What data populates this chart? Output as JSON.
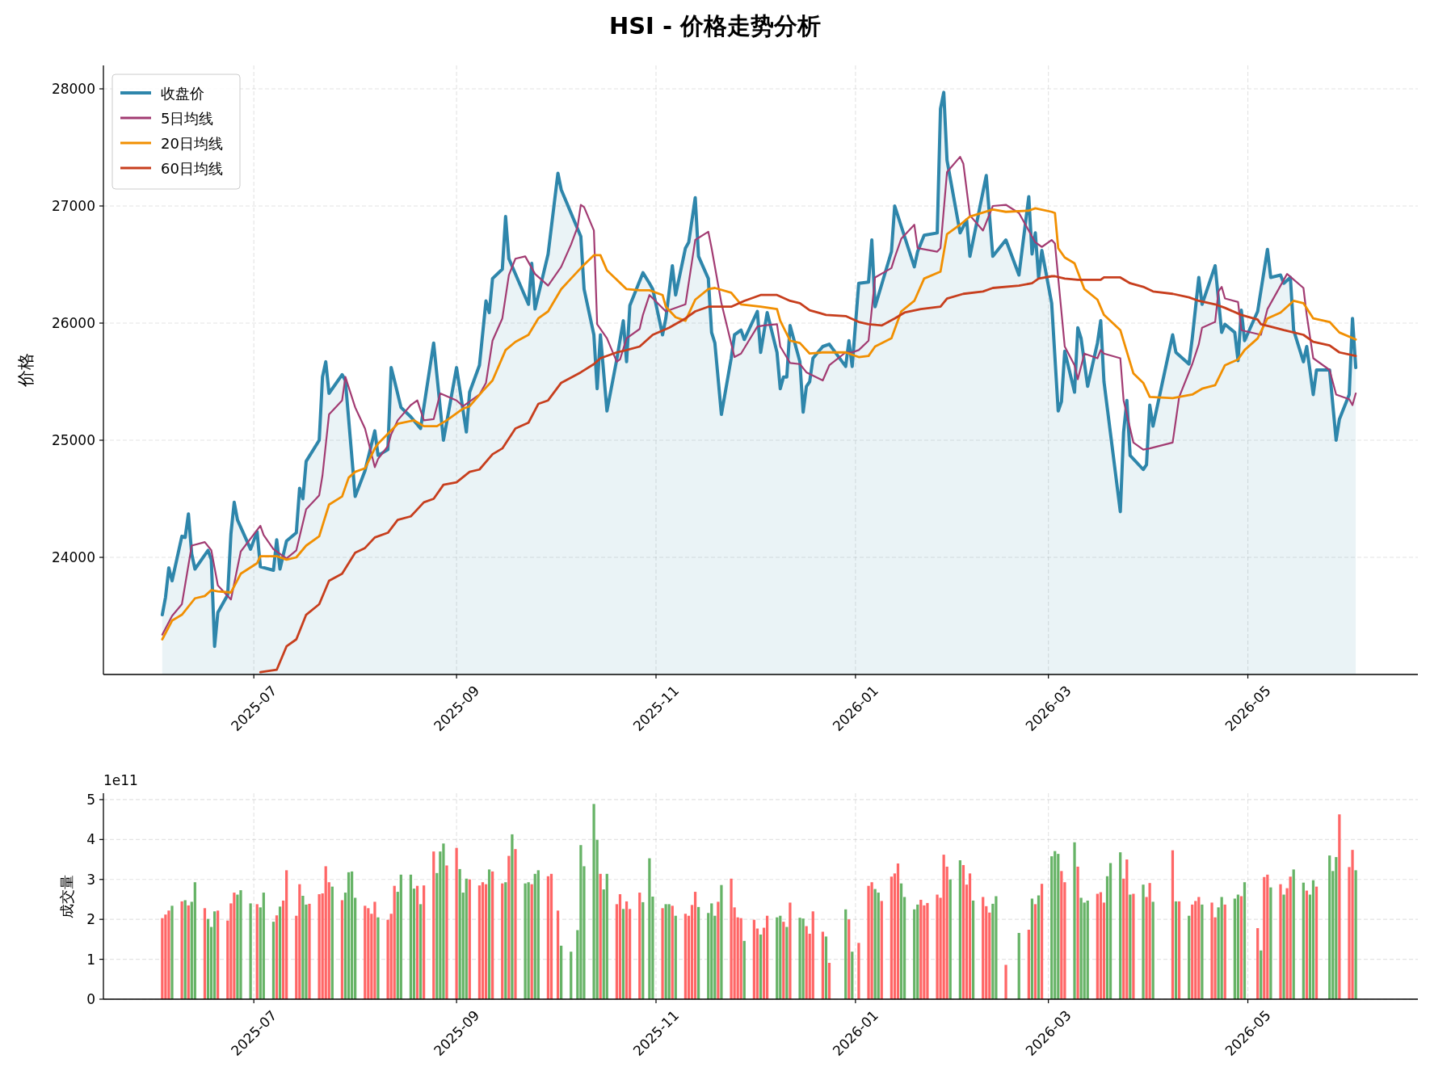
{
  "chart_data": [
    {
      "type": "line",
      "title": "HSI - 价格走势分析",
      "ylabel": "价格",
      "xlim": [
        "2025-05-16",
        "2026-06-22"
      ],
      "xticks": [
        "2025-07",
        "2025-09",
        "2025-11",
        "2026-01",
        "2026-03",
        "2026-05"
      ],
      "ylim": [
        23000,
        28200
      ],
      "yticks": [
        24000,
        25000,
        26000,
        27000,
        28000
      ],
      "grid": true,
      "legend": "top left",
      "series": [
        {
          "name": "收盘价",
          "type": "area",
          "color": "#2e86ab",
          "x": [
            "2025-06-03",
            "2025-06-04",
            "2025-06-05",
            "2025-06-06",
            "2025-06-09",
            "2025-06-10",
            "2025-06-11",
            "2025-06-12",
            "2025-06-13",
            "2025-06-17",
            "2025-06-18",
            "2025-06-19",
            "2025-06-20",
            "2025-06-23",
            "2025-06-24",
            "2025-06-25",
            "2025-06-26",
            "2025-06-30",
            "2025-07-02",
            "2025-07-03",
            "2025-07-07",
            "2025-07-08",
            "2025-07-09",
            "2025-07-11",
            "2025-07-14",
            "2025-07-15",
            "2025-07-16",
            "2025-07-17",
            "2025-07-21",
            "2025-07-22",
            "2025-07-23",
            "2025-07-24",
            "2025-07-28",
            "2025-07-29",
            "2025-08-01",
            "2025-08-04",
            "2025-08-07",
            "2025-08-08",
            "2025-08-11",
            "2025-08-12",
            "2025-08-13",
            "2025-08-15",
            "2025-08-18",
            "2025-08-21",
            "2025-08-25",
            "2025-08-28",
            "2025-09-01",
            "2025-09-04",
            "2025-09-05",
            "2025-09-08",
            "2025-09-10",
            "2025-09-11",
            "2025-09-12",
            "2025-09-15",
            "2025-09-16",
            "2025-09-17",
            "2025-09-23",
            "2025-09-24",
            "2025-09-25",
            "2025-09-29",
            "2025-10-02",
            "2025-10-03",
            "2025-10-09",
            "2025-10-10",
            "2025-10-13",
            "2025-10-14",
            "2025-10-15",
            "2025-10-17",
            "2025-10-20",
            "2025-10-22",
            "2025-10-23",
            "2025-10-24",
            "2025-10-28",
            "2025-10-30",
            "2025-10-31",
            "2025-11-03",
            "2025-11-04",
            "2025-11-06",
            "2025-11-07",
            "2025-11-10",
            "2025-11-11",
            "2025-11-13",
            "2025-11-14",
            "2025-11-17",
            "2025-11-18",
            "2025-11-19",
            "2025-11-21",
            "2025-11-24",
            "2025-11-25",
            "2025-11-27",
            "2025-11-28",
            "2025-12-02",
            "2025-12-03",
            "2025-12-05",
            "2025-12-08",
            "2025-12-09",
            "2025-12-10",
            "2025-12-11",
            "2025-12-12",
            "2025-12-15",
            "2025-12-16",
            "2025-12-17",
            "2025-12-18",
            "2025-12-19",
            "2025-12-22",
            "2025-12-24",
            "2025-12-29",
            "2025-12-30",
            "2025-12-31",
            "2026-01-02",
            "2026-01-05",
            "2026-01-06",
            "2026-01-07",
            "2026-01-12",
            "2026-01-13",
            "2026-01-19",
            "2026-01-20",
            "2026-01-22",
            "2026-01-26",
            "2026-01-27",
            "2026-01-28",
            "2026-01-29",
            "2026-02-02",
            "2026-02-04",
            "2026-02-05",
            "2026-02-10",
            "2026-02-12",
            "2026-02-16",
            "2026-02-20",
            "2026-02-23",
            "2026-02-24",
            "2026-02-25",
            "2026-02-26",
            "2026-02-27",
            "2026-03-02",
            "2026-03-04",
            "2026-03-05",
            "2026-03-06",
            "2026-03-09",
            "2026-03-10",
            "2026-03-11",
            "2026-03-13",
            "2026-03-16",
            "2026-03-17",
            "2026-03-18",
            "2026-03-23",
            "2026-03-24",
            "2026-03-25",
            "2026-03-26",
            "2026-03-30",
            "2026-03-31",
            "2026-04-01",
            "2026-04-02",
            "2026-04-08",
            "2026-04-09",
            "2026-04-13",
            "2026-04-14",
            "2026-04-16",
            "2026-04-17",
            "2026-04-21",
            "2026-04-23",
            "2026-04-24",
            "2026-04-27",
            "2026-04-28",
            "2026-04-29",
            "2026-04-30",
            "2026-05-04",
            "2026-05-07",
            "2026-05-08",
            "2026-05-11",
            "2026-05-12",
            "2026-05-14",
            "2026-05-15",
            "2026-05-18",
            "2026-05-19",
            "2026-05-21",
            "2026-05-22",
            "2026-05-26",
            "2026-05-28",
            "2026-05-29",
            "2026-06-01",
            "2026-06-02",
            "2026-06-03"
          ],
          "values": [
            23510,
            23660,
            23910,
            23800,
            24180,
            24170,
            24370,
            24030,
            23900,
            24060,
            23980,
            23240,
            23530,
            23680,
            24200,
            24470,
            24320,
            24070,
            24220,
            23920,
            23890,
            24150,
            23900,
            24140,
            24210,
            24590,
            24500,
            24820,
            25000,
            25540,
            25670,
            25400,
            25560,
            25510,
            24520,
            24740,
            25080,
            24870,
            24920,
            25620,
            25510,
            25280,
            25200,
            25100,
            25830,
            25000,
            25620,
            25070,
            25410,
            25640,
            26190,
            26090,
            26380,
            26460,
            26910,
            26550,
            26160,
            26510,
            26120,
            26590,
            27280,
            27140,
            26740,
            26290,
            25900,
            25440,
            25900,
            25250,
            25690,
            26020,
            25670,
            26150,
            26430,
            26340,
            26290,
            25900,
            26040,
            26490,
            26240,
            26640,
            26690,
            27070,
            26570,
            26380,
            25920,
            25830,
            25220,
            25700,
            25900,
            25940,
            25860,
            26100,
            25750,
            26090,
            25750,
            25440,
            25540,
            25540,
            25980,
            25670,
            25240,
            25460,
            25500,
            25700,
            25800,
            25820,
            25630,
            25850,
            25630,
            26340,
            26350,
            26710,
            26140,
            26610,
            27000,
            26480,
            26610,
            26750,
            26770,
            27830,
            27970,
            27390,
            26770,
            26880,
            26570,
            27260,
            26570,
            26710,
            26410,
            27080,
            26590,
            26770,
            26390,
            26620,
            26170,
            25250,
            25330,
            25760,
            25410,
            25960,
            25870,
            25460,
            25830,
            26020,
            25500,
            24390,
            25070,
            25340,
            24870,
            24750,
            24790,
            25300,
            25120,
            25900,
            25750,
            25650,
            25870,
            26390,
            26160,
            26490,
            25920,
            25990,
            25920,
            25680,
            26110,
            25850,
            26100,
            26630,
            26390,
            26410,
            26340,
            26390,
            25940,
            25670,
            25800,
            25390,
            25600,
            25600,
            25000,
            25180,
            25390,
            26040,
            25620
          ]
        },
        {
          "name": "5日均线",
          "color": "#a23b72",
          "x": [
            "2025-06-03",
            "2025-06-06",
            "2025-06-09",
            "2025-06-12",
            "2025-06-16",
            "2025-06-18",
            "2025-06-20",
            "2025-06-24",
            "2025-06-27",
            "2025-07-03",
            "2025-07-04",
            "2025-07-07",
            "2025-07-11",
            "2025-07-14",
            "2025-07-17",
            "2025-07-21",
            "2025-07-22",
            "2025-07-24",
            "2025-07-28",
            "2025-07-29",
            "2025-08-01",
            "2025-08-04",
            "2025-08-07",
            "2025-08-08",
            "2025-08-11",
            "2025-08-12",
            "2025-08-14",
            "2025-08-18",
            "2025-08-20",
            "2025-08-22",
            "2025-08-25",
            "2025-08-27",
            "2025-09-01",
            "2025-09-03",
            "2025-09-05",
            "2025-09-08",
            "2025-09-10",
            "2025-09-12",
            "2025-09-15",
            "2025-09-17",
            "2025-09-19",
            "2025-09-22",
            "2025-09-25",
            "2025-09-29",
            "2025-10-03",
            "2025-10-06",
            "2025-10-08",
            "2025-10-09",
            "2025-10-10",
            "2025-10-13",
            "2025-10-14",
            "2025-10-17",
            "2025-10-20",
            "2025-10-21",
            "2025-10-23",
            "2025-10-27",
            "2025-10-28",
            "2025-10-30",
            "2025-11-04",
            "2025-11-10",
            "2025-11-13",
            "2025-11-17",
            "2025-11-18",
            "2025-11-21",
            "2025-11-25",
            "2025-11-27",
            "2025-12-02",
            "2025-12-04",
            "2025-12-08",
            "2025-12-09",
            "2025-12-12",
            "2025-12-15",
            "2025-12-17",
            "2025-12-22",
            "2025-12-24",
            "2025-12-29",
            "2025-12-31",
            "2026-01-02",
            "2026-01-05",
            "2026-01-07",
            "2026-01-12",
            "2026-01-13",
            "2026-01-15",
            "2026-01-19",
            "2026-01-20",
            "2026-01-26",
            "2026-01-27",
            "2026-01-29",
            "2026-02-02",
            "2026-02-03",
            "2026-02-05",
            "2026-02-09",
            "2026-02-12",
            "2026-02-16",
            "2026-02-20",
            "2026-02-25",
            "2026-02-27",
            "2026-03-02",
            "2026-03-03",
            "2026-03-06",
            "2026-03-09",
            "2026-03-10",
            "2026-03-12",
            "2026-03-16",
            "2026-03-17",
            "2026-03-18",
            "2026-03-23",
            "2026-03-24",
            "2026-03-27",
            "2026-03-30",
            "2026-04-01",
            "2026-04-08",
            "2026-04-10",
            "2026-04-14",
            "2026-04-16",
            "2026-04-17",
            "2026-04-21",
            "2026-04-22",
            "2026-04-23",
            "2026-04-24",
            "2026-04-28",
            "2026-04-29",
            "2026-05-05",
            "2026-05-07",
            "2026-05-13",
            "2026-05-18",
            "2026-05-19",
            "2026-05-21",
            "2026-05-26",
            "2026-05-28",
            "2026-06-01",
            "2026-06-02",
            "2026-06-03"
          ],
          "values": [
            23340,
            23500,
            23600,
            24100,
            24130,
            24060,
            23760,
            23640,
            24050,
            24270,
            24190,
            24070,
            23990,
            24060,
            24410,
            24530,
            24700,
            25220,
            25340,
            25540,
            25280,
            25100,
            24770,
            24840,
            24950,
            25050,
            25170,
            25300,
            25340,
            25170,
            25180,
            25400,
            25340,
            25290,
            25330,
            25390,
            25490,
            25850,
            26040,
            26410,
            26550,
            26570,
            26420,
            26320,
            26480,
            26670,
            26820,
            27010,
            26990,
            26790,
            25990,
            25870,
            25670,
            25690,
            25870,
            25950,
            26070,
            26240,
            26100,
            26160,
            26710,
            26780,
            26640,
            26170,
            25710,
            25740,
            25970,
            25980,
            25990,
            25800,
            25660,
            25650,
            25580,
            25510,
            25640,
            25750,
            25750,
            25770,
            25850,
            26390,
            26470,
            26560,
            26720,
            26840,
            26640,
            26610,
            26640,
            27290,
            27420,
            27360,
            26920,
            26790,
            27000,
            27010,
            26940,
            26690,
            26650,
            26710,
            26680,
            25800,
            25640,
            25520,
            25740,
            25700,
            25770,
            25740,
            25700,
            25340,
            24980,
            24920,
            24930,
            24980,
            25370,
            25650,
            25820,
            25960,
            26010,
            26270,
            26310,
            26210,
            26180,
            25940,
            25900,
            26120,
            26420,
            26300,
            26070,
            25700,
            25600,
            25390,
            25350,
            25300,
            25400
          ]
        },
        {
          "name": "20日均线",
          "color": "#f18f01",
          "x": [
            "2025-06-03",
            "2025-06-06",
            "2025-06-09",
            "2025-06-13",
            "2025-06-16",
            "2025-06-18",
            "2025-06-20",
            "2025-06-24",
            "2025-06-27",
            "2025-07-02",
            "2025-07-03",
            "2025-07-08",
            "2025-07-11",
            "2025-07-14",
            "2025-07-17",
            "2025-07-21",
            "2025-07-24",
            "2025-07-28",
            "2025-07-30",
            "2025-08-01",
            "2025-08-04",
            "2025-08-07",
            "2025-08-08",
            "2025-08-14",
            "2025-08-19",
            "2025-08-22",
            "2025-08-26",
            "2025-08-29",
            "2025-09-03",
            "2025-09-05",
            "2025-09-09",
            "2025-09-12",
            "2025-09-16",
            "2025-09-19",
            "2025-09-23",
            "2025-09-26",
            "2025-09-29",
            "2025-10-03",
            "2025-10-06",
            "2025-10-09",
            "2025-10-13",
            "2025-10-15",
            "2025-10-17",
            "2025-10-23",
            "2025-10-27",
            "2025-10-30",
            "2025-11-03",
            "2025-11-04",
            "2025-11-07",
            "2025-11-10",
            "2025-11-13",
            "2025-11-17",
            "2025-11-19",
            "2025-11-24",
            "2025-11-27",
            "2025-12-03",
            "2025-12-08",
            "2025-12-09",
            "2025-12-12",
            "2025-12-15",
            "2025-12-18",
            "2025-12-22",
            "2025-12-29",
            "2026-01-02",
            "2026-01-05",
            "2026-01-07",
            "2026-01-12",
            "2026-01-15",
            "2026-01-19",
            "2026-01-22",
            "2026-01-27",
            "2026-01-29",
            "2026-02-02",
            "2026-02-05",
            "2026-02-12",
            "2026-02-16",
            "2026-02-23",
            "2026-02-25",
            "2026-03-02",
            "2026-03-03",
            "2026-03-04",
            "2026-03-06",
            "2026-03-09",
            "2026-03-12",
            "2026-03-16",
            "2026-03-18",
            "2026-03-23",
            "2026-03-27",
            "2026-03-30",
            "2026-04-01",
            "2026-04-08",
            "2026-04-14",
            "2026-04-17",
            "2026-04-21",
            "2026-04-24",
            "2026-04-28",
            "2026-04-30",
            "2026-05-04",
            "2026-05-07",
            "2026-05-11",
            "2026-05-15",
            "2026-05-18",
            "2026-05-21",
            "2026-05-26",
            "2026-05-29",
            "2026-06-03"
          ],
          "values": [
            23300,
            23460,
            23510,
            23650,
            23670,
            23720,
            23710,
            23700,
            23860,
            23950,
            24010,
            24010,
            23980,
            24000,
            24100,
            24180,
            24450,
            24520,
            24680,
            24730,
            24760,
            24930,
            24970,
            25140,
            25170,
            25120,
            25120,
            25170,
            25270,
            25290,
            25420,
            25510,
            25770,
            25840,
            25900,
            26040,
            26100,
            26290,
            26380,
            26470,
            26580,
            26580,
            26450,
            26290,
            26280,
            26280,
            26240,
            26140,
            26050,
            26020,
            26200,
            26290,
            26300,
            26260,
            26160,
            26140,
            26120,
            26020,
            25850,
            25830,
            25740,
            25750,
            25750,
            25710,
            25720,
            25800,
            25870,
            26100,
            26190,
            26380,
            26440,
            26760,
            26840,
            26910,
            26970,
            26950,
            26960,
            26980,
            26950,
            26940,
            26640,
            26560,
            26510,
            26290,
            26200,
            26070,
            25940,
            25570,
            25490,
            25370,
            25360,
            25390,
            25440,
            25470,
            25640,
            25690,
            25770,
            25870,
            26040,
            26090,
            26190,
            26170,
            26040,
            26010,
            25920,
            25860
          ]
        },
        {
          "name": "60日均线",
          "color": "#c73e1d",
          "x": [
            "2025-07-03",
            "2025-07-08",
            "2025-07-11",
            "2025-07-14",
            "2025-07-17",
            "2025-07-21",
            "2025-07-24",
            "2025-07-28",
            "2025-08-01",
            "2025-08-04",
            "2025-08-07",
            "2025-08-11",
            "2025-08-14",
            "2025-08-18",
            "2025-08-22",
            "2025-08-25",
            "2025-08-28",
            "2025-09-01",
            "2025-09-05",
            "2025-09-08",
            "2025-09-12",
            "2025-09-15",
            "2025-09-19",
            "2025-09-23",
            "2025-09-26",
            "2025-09-29",
            "2025-10-03",
            "2025-10-09",
            "2025-10-13",
            "2025-10-15",
            "2025-10-20",
            "2025-10-23",
            "2025-10-27",
            "2025-10-31",
            "2025-11-05",
            "2025-11-10",
            "2025-11-13",
            "2025-11-17",
            "2025-11-21",
            "2025-11-24",
            "2025-11-28",
            "2025-12-03",
            "2025-12-08",
            "2025-12-12",
            "2025-12-15",
            "2025-12-18",
            "2025-12-23",
            "2025-12-29",
            "2026-01-02",
            "2026-01-05",
            "2026-01-09",
            "2026-01-13",
            "2026-01-16",
            "2026-01-21",
            "2026-01-27",
            "2026-01-29",
            "2026-02-03",
            "2026-02-09",
            "2026-02-12",
            "2026-02-20",
            "2026-02-24",
            "2026-02-26",
            "2026-03-02",
            "2026-03-03",
            "2026-03-06",
            "2026-03-10",
            "2026-03-17",
            "2026-03-18",
            "2026-03-23",
            "2026-03-26",
            "2026-03-30",
            "2026-04-02",
            "2026-04-08",
            "2026-04-13",
            "2026-04-16",
            "2026-04-21",
            "2026-04-24",
            "2026-04-29",
            "2026-05-04",
            "2026-05-05",
            "2026-05-08",
            "2026-05-12",
            "2026-05-18",
            "2026-05-21",
            "2026-05-26",
            "2026-05-29",
            "2026-06-03"
          ],
          "values": [
            23020,
            23040,
            23240,
            23300,
            23510,
            23600,
            23800,
            23860,
            24040,
            24080,
            24170,
            24210,
            24320,
            24350,
            24470,
            24500,
            24620,
            24640,
            24730,
            24750,
            24880,
            24930,
            25100,
            25150,
            25310,
            25340,
            25490,
            25580,
            25650,
            25700,
            25750,
            25770,
            25800,
            25900,
            25960,
            26040,
            26100,
            26140,
            26140,
            26140,
            26190,
            26240,
            26240,
            26190,
            26170,
            26110,
            26070,
            26060,
            26010,
            25990,
            25980,
            26040,
            26090,
            26120,
            26140,
            26210,
            26250,
            26270,
            26300,
            26320,
            26340,
            26380,
            26400,
            26400,
            26380,
            26370,
            26370,
            26390,
            26390,
            26340,
            26310,
            26270,
            26250,
            26220,
            26190,
            26160,
            26130,
            26070,
            26030,
            25990,
            25970,
            25940,
            25900,
            25840,
            25810,
            25750,
            25720
          ]
        }
      ]
    },
    {
      "type": "bar",
      "ylabel": "成交量",
      "annotations": [
        "1e11"
      ],
      "xlim": [
        "2025-05-16",
        "2026-06-22"
      ],
      "xticks": [
        "2025-07",
        "2025-09",
        "2025-11",
        "2026-01",
        "2026-03",
        "2026-05"
      ],
      "ylim": [
        0,
        5.16
      ],
      "yticks": [
        0,
        1,
        2,
        3,
        4,
        5
      ],
      "grid": true,
      "series": [
        {
          "color": "#ff6666",
          "x": [
            "2025-06-03",
            "2025-06-04",
            "2025-06-05",
            "2025-06-09",
            "2025-06-11",
            "2025-06-16",
            "2025-06-20",
            "2025-06-23",
            "2025-06-24",
            "2025-06-25",
            "2025-07-02",
            "2025-07-08",
            "2025-07-10",
            "2025-07-11",
            "2025-07-14",
            "2025-07-15",
            "2025-07-18",
            "2025-07-21",
            "2025-07-22",
            "2025-07-23",
            "2025-07-24",
            "2025-07-28",
            "2025-08-04",
            "2025-08-05",
            "2025-08-06",
            "2025-08-07",
            "2025-08-11",
            "2025-08-12",
            "2025-08-13",
            "2025-08-20",
            "2025-08-22",
            "2025-08-25",
            "2025-08-29",
            "2025-09-01",
            "2025-09-05",
            "2025-09-08",
            "2025-09-09",
            "2025-09-10",
            "2025-09-12",
            "2025-09-15",
            "2025-09-17",
            "2025-09-19",
            "2025-09-24",
            "2025-09-29",
            "2025-09-30",
            "2025-10-02",
            "2025-10-15",
            "2025-10-20",
            "2025-10-21",
            "2025-10-23",
            "2025-10-24",
            "2025-10-27",
            "2025-11-03",
            "2025-11-06",
            "2025-11-10",
            "2025-11-11",
            "2025-11-12",
            "2025-11-13",
            "2025-11-20",
            "2025-11-24",
            "2025-11-25",
            "2025-11-26",
            "2025-11-27",
            "2025-12-01",
            "2025-12-02",
            "2025-12-04",
            "2025-12-05",
            "2025-12-10",
            "2025-12-12",
            "2025-12-17",
            "2025-12-18",
            "2025-12-19",
            "2025-12-22",
            "2025-12-24",
            "2025-12-30",
            "2026-01-02",
            "2026-01-05",
            "2026-01-06",
            "2026-01-09",
            "2026-01-12",
            "2026-01-13",
            "2026-01-14",
            "2026-01-21",
            "2026-01-22",
            "2026-01-23",
            "2026-01-26",
            "2026-01-27",
            "2026-01-28",
            "2026-01-29",
            "2026-02-03",
            "2026-02-04",
            "2026-02-05",
            "2026-02-09",
            "2026-02-10",
            "2026-02-11",
            "2026-02-16",
            "2026-02-23",
            "2026-02-25",
            "2026-02-27",
            "2026-03-05",
            "2026-03-06",
            "2026-03-10",
            "2026-03-16",
            "2026-03-17",
            "2026-03-18",
            "2026-03-24",
            "2026-03-25",
            "2026-03-27",
            "2026-03-31",
            "2026-04-01",
            "2026-04-08",
            "2026-04-10",
            "2026-04-14",
            "2026-04-15",
            "2026-04-16",
            "2026-04-20",
            "2026-04-21",
            "2026-04-24",
            "2026-04-29",
            "2026-05-04",
            "2026-05-06",
            "2026-05-07",
            "2026-05-11",
            "2026-05-13",
            "2026-05-14",
            "2026-05-19",
            "2026-05-22",
            "2026-05-29",
            "2026-06-01",
            "2026-06-02"
          ],
          "values": [
            2.03,
            2.12,
            2.22,
            2.45,
            2.35,
            2.28,
            2.22,
            1.97,
            2.4,
            2.67,
            2.38,
            2.1,
            2.47,
            3.23,
            2.09,
            2.88,
            2.39,
            2.63,
            2.65,
            3.33,
            2.93,
            2.48,
            2.34,
            2.28,
            2.14,
            2.44,
            1.99,
            2.14,
            2.84,
            2.84,
            2.85,
            3.7,
            3.35,
            3.79,
            3.0,
            2.85,
            2.93,
            2.88,
            3.2,
            2.9,
            3.59,
            3.76,
            2.88,
            3.08,
            3.14,
            2.22,
            3.14,
            2.38,
            2.63,
            2.45,
            2.26,
            2.67,
            2.28,
            2.34,
            2.14,
            2.09,
            2.36,
            2.69,
            2.44,
            3.02,
            2.3,
            2.05,
            2.03,
            1.99,
            1.77,
            1.79,
            2.09,
            1.94,
            2.42,
            1.83,
            1.64,
            2.2,
            1.69,
            0.91,
            2.0,
            1.41,
            2.84,
            2.93,
            2.46,
            3.07,
            3.15,
            3.4,
            2.49,
            2.35,
            2.41,
            2.62,
            2.54,
            3.62,
            3.32,
            3.36,
            2.87,
            3.15,
            2.56,
            2.33,
            2.17,
            0.86,
            1.74,
            2.38,
            2.89,
            3.21,
            2.93,
            3.32,
            2.64,
            2.68,
            2.42,
            3.02,
            3.5,
            2.64,
            2.56,
            2.91,
            3.73,
            2.45,
            2.37,
            2.46,
            2.56,
            2.42,
            2.05,
            2.37,
            2.58,
            1.78,
            3.06,
            3.12,
            2.88,
            2.78,
            3.07,
            2.72,
            2.82,
            4.63,
            3.31,
            3.74
          ]
        },
        {
          "color": "#66b366",
          "x": [
            "2025-06-06",
            "2025-06-10",
            "2025-06-12",
            "2025-06-13",
            "2025-06-17",
            "2025-06-18",
            "2025-06-19",
            "2025-06-26",
            "2025-06-27",
            "2025-06-30",
            "2025-07-03",
            "2025-07-04",
            "2025-07-07",
            "2025-07-09",
            "2025-07-16",
            "2025-07-17",
            "2025-07-25",
            "2025-07-29",
            "2025-07-30",
            "2025-07-31",
            "2025-08-01",
            "2025-08-08",
            "2025-08-14",
            "2025-08-15",
            "2025-08-18",
            "2025-08-19",
            "2025-08-21",
            "2025-08-26",
            "2025-08-27",
            "2025-08-28",
            "2025-09-02",
            "2025-09-03",
            "2025-09-04",
            "2025-09-11",
            "2025-09-16",
            "2025-09-18",
            "2025-09-22",
            "2025-09-23",
            "2025-09-25",
            "2025-09-26",
            "2025-10-03",
            "2025-10-06",
            "2025-10-08",
            "2025-10-09",
            "2025-10-10",
            "2025-10-13",
            "2025-10-14",
            "2025-10-16",
            "2025-10-17",
            "2025-10-22",
            "2025-10-28",
            "2025-10-30",
            "2025-10-31",
            "2025-11-04",
            "2025-11-05",
            "2025-11-07",
            "2025-11-14",
            "2025-11-17",
            "2025-11-18",
            "2025-11-19",
            "2025-11-21",
            "2025-11-28",
            "2025-12-03",
            "2025-12-08",
            "2025-12-09",
            "2025-12-11",
            "2025-12-15",
            "2025-12-16",
            "2025-12-23",
            "2025-12-29",
            "2025-12-31",
            "2026-01-07",
            "2026-01-08",
            "2026-01-15",
            "2026-01-16",
            "2026-01-19",
            "2026-01-20",
            "2026-01-30",
            "2026-02-02",
            "2026-02-06",
            "2026-02-12",
            "2026-02-13",
            "2026-02-20",
            "2026-02-24",
            "2026-02-26",
            "2026-03-02",
            "2026-03-03",
            "2026-03-04",
            "2026-03-09",
            "2026-03-11",
            "2026-03-12",
            "2026-03-13",
            "2026-03-19",
            "2026-03-20",
            "2026-03-23",
            "2026-03-26",
            "2026-03-30",
            "2026-04-02",
            "2026-04-09",
            "2026-04-13",
            "2026-04-17",
            "2026-04-22",
            "2026-04-23",
            "2026-04-27",
            "2026-04-28",
            "2026-04-30",
            "2026-05-05",
            "2026-05-08",
            "2026-05-12",
            "2026-05-15",
            "2026-05-18",
            "2026-05-20",
            "2026-05-21",
            "2026-05-26",
            "2026-05-27",
            "2026-05-28",
            "2026-06-03"
          ],
          "values": [
            2.34,
            2.48,
            2.44,
            2.93,
            2.01,
            1.81,
            2.2,
            2.62,
            2.73,
            2.4,
            2.3,
            2.67,
            1.94,
            2.32,
            2.59,
            2.37,
            2.82,
            2.67,
            3.18,
            3.2,
            2.54,
            2.05,
            2.69,
            3.12,
            3.12,
            2.77,
            2.38,
            3.16,
            3.7,
            3.9,
            3.26,
            2.67,
            3.02,
            3.25,
            2.93,
            4.13,
            2.9,
            2.93,
            3.14,
            3.23,
            1.34,
            1.19,
            1.73,
            3.86,
            3.33,
            4.89,
            3.99,
            2.75,
            3.14,
            2.26,
            2.43,
            3.53,
            2.57,
            2.38,
            2.38,
            2.09,
            2.31,
            2.16,
            2.4,
            2.09,
            2.86,
            1.46,
            1.62,
            2.05,
            2.09,
            1.81,
            2.04,
            2.02,
            1.57,
            2.25,
            1.19,
            2.76,
            2.67,
            2.9,
            2.56,
            2.25,
            2.37,
            3.0,
            3.48,
            2.47,
            2.39,
            2.58,
            1.66,
            2.52,
            2.6,
            3.58,
            3.71,
            3.64,
            3.93,
            2.54,
            2.42,
            2.47,
            3.08,
            3.41,
            3.68,
            2.62,
            2.87,
            2.44,
            2.45,
            2.09,
            2.37,
            2.3,
            2.56,
            2.52,
            2.62,
            2.93,
            1.22,
            2.8,
            2.62,
            3.25,
            2.92,
            2.62,
            2.98,
            3.6,
            3.21,
            3.56,
            3.23
          ]
        }
      ]
    }
  ]
}
